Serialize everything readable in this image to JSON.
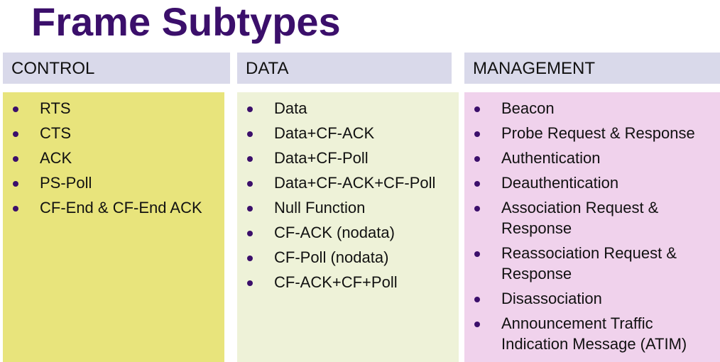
{
  "title": "Frame Subtypes",
  "columns": [
    {
      "header": "CONTROL",
      "items": [
        "RTS",
        "CTS",
        "ACK",
        "PS-Poll",
        "CF-End & CF-End ACK"
      ]
    },
    {
      "header": "DATA",
      "items": [
        "Data",
        "Data+CF-ACK",
        "Data+CF-Poll",
        "Data+CF-ACK+CF-Poll",
        "Null Function",
        "CF-ACK (nodata)",
        "CF-Poll (nodata)",
        "CF-ACK+CF+Poll"
      ]
    },
    {
      "header": "MANAGEMENT",
      "items": [
        "Beacon",
        "Probe Request & Response",
        "Authentication",
        "Deauthentication",
        "Association Request & Response",
        "Reassociation Request & Response",
        "Disassociation",
        "Announcement Traffic Indication Message (ATIM)"
      ]
    }
  ]
}
